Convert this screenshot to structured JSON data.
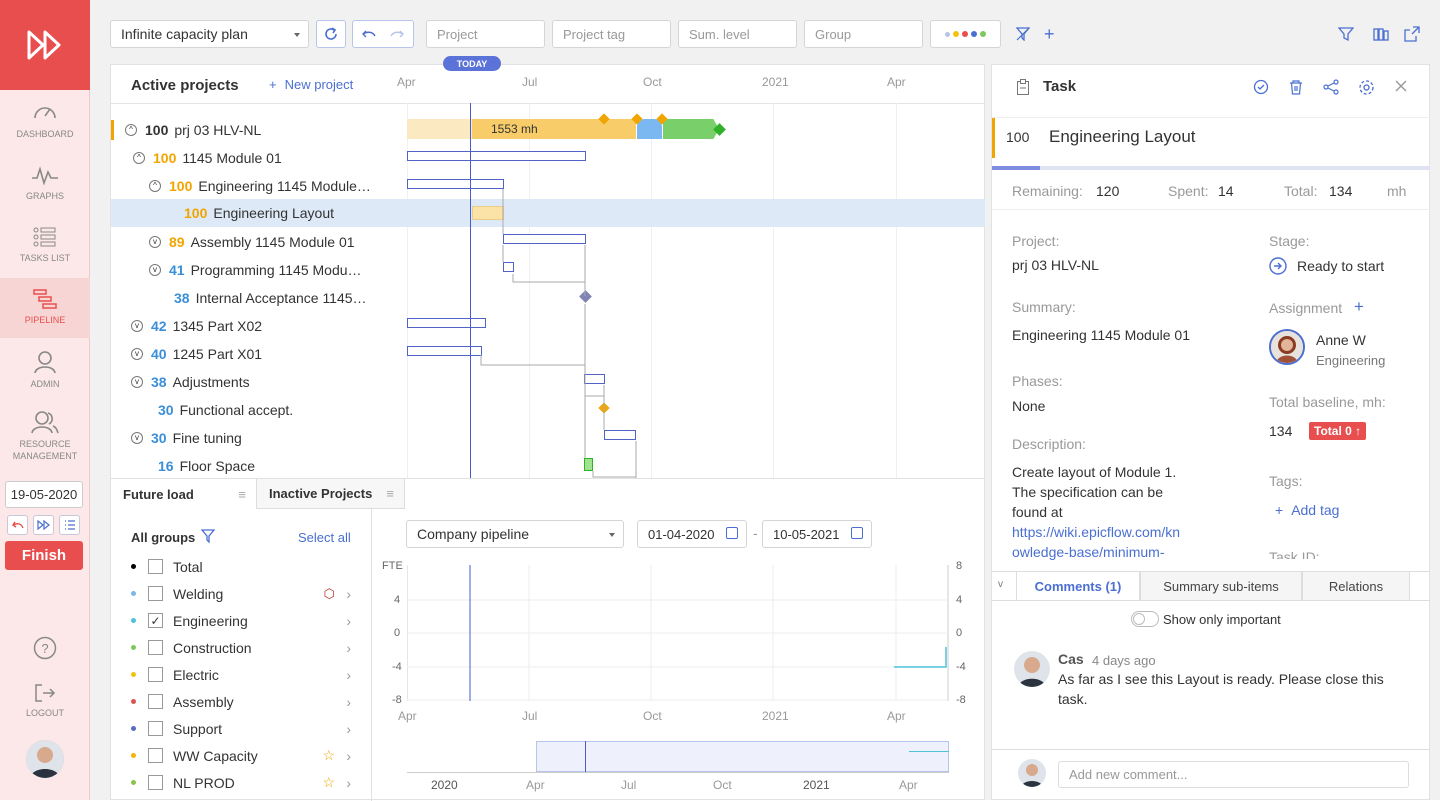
{
  "sidebar": {
    "items": [
      {
        "label": "Dashboard",
        "icon": "speedometer-icon"
      },
      {
        "label": "Graphs",
        "icon": "graph-icon"
      },
      {
        "label": "Tasks list",
        "icon": "list-icon"
      },
      {
        "label": "Pipeline",
        "icon": "pipeline-icon"
      },
      {
        "label": "Admin",
        "icon": "user-icon"
      },
      {
        "label": "Resource management",
        "icon": "users-icon"
      }
    ],
    "date": "19-05-2020",
    "finish_label": "Finish",
    "logout_label": "Logout"
  },
  "toolbar": {
    "plan": "Infinite capacity plan",
    "project_ph": "Project",
    "project_tag_ph": "Project tag",
    "sum_level_ph": "Sum. level",
    "group_ph": "Group"
  },
  "gantt": {
    "title": "Active projects",
    "new_project": "New project",
    "today": "TODAY",
    "months": [
      "Apr",
      "Jul",
      "Oct",
      "2021",
      "Apr"
    ],
    "summary_bar_label": "1553 mh",
    "rows": [
      {
        "num": "100",
        "name": "prj 03 HLV-NL",
        "num_color": "#333"
      },
      {
        "num": "100",
        "name": "1145 Module 01",
        "num_color": "#f0a500"
      },
      {
        "num": "100",
        "name": "Engineering 1145 Module…",
        "num_color": "#f0a500"
      },
      {
        "num": "100",
        "name": "Engineering Layout",
        "num_color": "#f0a500"
      },
      {
        "num": "89",
        "name": "Assembly 1145 Module 01",
        "num_color": "#f0a500"
      },
      {
        "num": "41",
        "name": "Programming 1145 Modu…",
        "num_color": "#3a8fd8"
      },
      {
        "num": "38",
        "name": "Internal Acceptance 1145…",
        "num_color": "#3a8fd8"
      },
      {
        "num": "42",
        "name": "1345 Part X02",
        "num_color": "#3a8fd8"
      },
      {
        "num": "40",
        "name": "1245 Part X01",
        "num_color": "#3a8fd8"
      },
      {
        "num": "38",
        "name": "Adjustments",
        "num_color": "#3a8fd8"
      },
      {
        "num": "30",
        "name": "Functional accept.",
        "num_color": "#3a8fd8"
      },
      {
        "num": "30",
        "name": "Fine tuning",
        "num_color": "#3a8fd8"
      },
      {
        "num": "16",
        "name": "Floor Space",
        "num_color": "#3a8fd8"
      }
    ]
  },
  "bottom": {
    "tab_future": "Future load",
    "tab_inactive": "Inactive Projects",
    "all_groups": "All groups",
    "select_all": "Select all",
    "groups": [
      {
        "name": "Total",
        "color": "#000",
        "checked": false
      },
      {
        "name": "Welding",
        "color": "#7ab8e8",
        "checked": false
      },
      {
        "name": "Engineering",
        "color": "#4dc2d8",
        "checked": true
      },
      {
        "name": "Construction",
        "color": "#7dc95e",
        "checked": false
      },
      {
        "name": "Electric",
        "color": "#f4c20d",
        "checked": false
      },
      {
        "name": "Assembly",
        "color": "#d9534f",
        "checked": false
      },
      {
        "name": "Support",
        "color": "#5b6ac4",
        "checked": false
      },
      {
        "name": "WW Capacity",
        "color": "#f4b400",
        "checked": false
      },
      {
        "name": "NL PROD",
        "color": "#8bc34a",
        "checked": false
      }
    ],
    "pipeline_select": "Company pipeline",
    "date_from": "01-04-2020",
    "date_to": "10-05-2021",
    "dash": "-",
    "fte_label": "FTE",
    "y_ticks": [
      "4",
      "0",
      "-4",
      "-8"
    ],
    "y_ticks_right": [
      "8",
      "4",
      "0",
      "-4",
      "-8"
    ],
    "x_ticks": [
      "Apr",
      "Jul",
      "Oct",
      "2021",
      "Apr"
    ],
    "nav_ticks": [
      "2020",
      "Apr",
      "Jul",
      "Oct",
      "2021",
      "Apr"
    ]
  },
  "task": {
    "header": "Task",
    "id": "100",
    "title": "Engineering Layout",
    "remaining_label": "Remaining:",
    "remaining": "120",
    "spent_label": "Spent:",
    "spent": "14",
    "total_label": "Total:",
    "total": "134",
    "unit": "mh",
    "project_label": "Project:",
    "project": "prj 03 HLV-NL",
    "stage_label": "Stage:",
    "stage": "Ready to start",
    "summary_label": "Summary:",
    "summary": "Engineering 1145 Module 01",
    "assignment_label": "Assignment",
    "assignee": "Anne W",
    "assignee_group": "Engineering",
    "phases_label": "Phases:",
    "phases": "None",
    "baseline_label": "Total baseline, mh:",
    "baseline": "134",
    "baseline_badge": "Total 0 ↑",
    "description_label": "Description:",
    "description_1": "Create layout of Module 1.",
    "description_2": "The specification can be",
    "description_3": "found at",
    "description_link_1": "https://wiki.epicflow.com/kn",
    "description_link_2": "owledge-base/minimum-",
    "tags_label": "Tags:",
    "add_tag": "Add tag",
    "taskid_label": "Task ID:",
    "tab_comments": "Comments (1)",
    "tab_summary": "Summary sub-items",
    "tab_relations": "Relations",
    "show_important": "Show only important",
    "comment_author": "Cas",
    "comment_time": "4 days ago",
    "comment_text_1": "As far as I see this Layout is ready. Please close this",
    "comment_text_2": "task.",
    "add_comment_ph": "Add new comment..."
  }
}
